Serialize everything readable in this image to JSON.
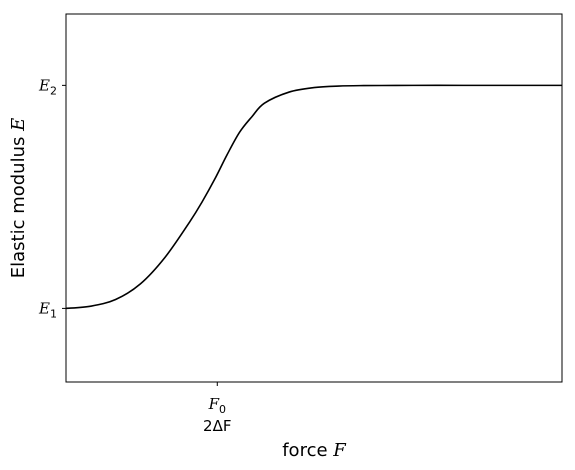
{
  "chart_data": {
    "type": "line",
    "title": "",
    "xlabel": {
      "prefix": "force ",
      "symbol": "F"
    },
    "ylabel": {
      "prefix": "Elastic modulus ",
      "symbol": "E"
    },
    "xlim": [
      0,
      10
    ],
    "ylim": [
      0.0,
      1.65
    ],
    "grid": false,
    "legend": "none",
    "xticks": [
      {
        "value": 3.05,
        "line1": "F",
        "line1_sub": "0",
        "line2": "2ΔF"
      }
    ],
    "yticks": [
      {
        "value": 0.33,
        "symbol": "E",
        "sub": "1"
      },
      {
        "value": 1.33,
        "symbol": "E",
        "sub": "2"
      }
    ],
    "series": [
      {
        "color": "#000000",
        "x": [
          0.0,
          0.5,
          1.0,
          1.5,
          2.0,
          2.5,
          2.75,
          3.0,
          3.25,
          3.5,
          3.75,
          4.0,
          4.5,
          5.0,
          5.5,
          6.0,
          7.0,
          8.0,
          9.0,
          10.0
        ],
        "y": [
          0.33,
          0.34,
          0.37,
          0.44,
          0.56,
          0.72,
          0.81,
          0.91,
          1.02,
          1.12,
          1.19,
          1.25,
          1.3,
          1.32,
          1.327,
          1.329,
          1.33,
          1.33,
          1.33,
          1.33
        ]
      }
    ]
  }
}
